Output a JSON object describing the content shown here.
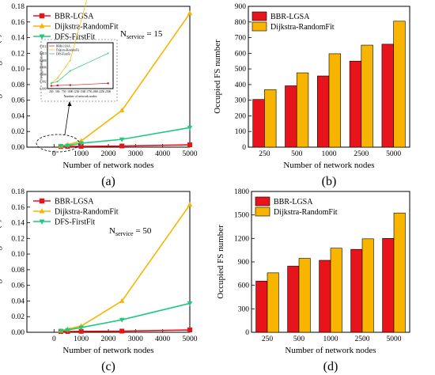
{
  "colors": {
    "red": "#e8141c",
    "yellow": "#f7b500",
    "green": "#1fc97c"
  },
  "chart_data": [
    {
      "id": "a",
      "type": "line",
      "panel_label": "(a)",
      "xlabel": "Number of network nodes",
      "ylabel": "Average running time(s)",
      "xlim": [
        -1000,
        5000
      ],
      "ylim": [
        0,
        0.18
      ],
      "xticks": [
        0,
        1000,
        2000,
        3000,
        4000,
        5000
      ],
      "yticks": [
        0.0,
        0.02,
        0.04,
        0.06,
        0.08,
        0.1,
        0.12,
        0.14,
        0.16,
        0.18
      ],
      "annotation_main": "N",
      "annotation_sub": "service",
      "annotation_tail": " = 15",
      "legend_position": "top-left",
      "x": [
        250,
        500,
        1000,
        2500,
        5000
      ],
      "series": [
        {
          "name": "BBR-LGSA",
          "marker": "square",
          "color": "red",
          "values": [
            0.0008,
            0.0009,
            0.001,
            0.0015,
            0.003
          ]
        },
        {
          "name": "Dijkstra-RandomFit",
          "marker": "triangle-up",
          "color": "yellow",
          "values": [
            0.0015,
            0.003,
            0.008,
            0.047,
            0.171
          ]
        },
        {
          "name": "DFS-FirstFit",
          "marker": "triangle-down",
          "color": "green",
          "values": [
            0.0015,
            0.002,
            0.005,
            0.01,
            0.025
          ]
        }
      ],
      "inset": {
        "xlabel": "Number of network nodes",
        "ylabel": "Average running time(s)",
        "xticks": [
          250,
          500,
          750,
          1000,
          1250,
          1500,
          1750,
          2000,
          2250,
          2500
        ],
        "yticks": [
          0,
          0.002,
          0.004,
          0.006,
          0.008,
          0.01,
          0.012
        ],
        "xlim": [
          100,
          2700
        ],
        "ylim": [
          0,
          0.013
        ],
        "series_names": [
          "BBR-LGSA",
          "Dijkstra-RandomFit",
          "DFS-FirstFit"
        ]
      }
    },
    {
      "id": "b",
      "type": "bar",
      "panel_label": "(b)",
      "xlabel": "Number of network nodes",
      "ylabel": "Occupied FS number",
      "ylim": [
        0,
        900
      ],
      "yticks": [
        0,
        100,
        200,
        300,
        400,
        500,
        600,
        700,
        800,
        900
      ],
      "legend_position": "top-left",
      "categories": [
        "250",
        "500",
        "1000",
        "2500",
        "5000"
      ],
      "series": [
        {
          "name": "BBR-LGSA",
          "color": "red",
          "values": [
            305,
            392,
            455,
            550,
            658
          ]
        },
        {
          "name": "Dijkstra-RandomFit",
          "color": "yellow",
          "values": [
            368,
            475,
            597,
            652,
            805
          ]
        }
      ]
    },
    {
      "id": "c",
      "type": "line",
      "panel_label": "(c)",
      "xlabel": "Number of network nodes",
      "ylabel": "Average running time(s)",
      "xlim": [
        -1000,
        5000
      ],
      "ylim": [
        0,
        0.18
      ],
      "xticks": [
        0,
        1000,
        2000,
        3000,
        4000,
        5000
      ],
      "yticks": [
        0.0,
        0.02,
        0.04,
        0.06,
        0.08,
        0.1,
        0.12,
        0.14,
        0.16,
        0.18
      ],
      "annotation_main": "N",
      "annotation_sub": "service",
      "annotation_tail": " = 50",
      "legend_position": "top-left",
      "x": [
        250,
        500,
        1000,
        2500,
        5000
      ],
      "series": [
        {
          "name": "BBR-LGSA",
          "marker": "square",
          "color": "red",
          "values": [
            0.001,
            0.001,
            0.0012,
            0.0015,
            0.003
          ]
        },
        {
          "name": "Dijkstra-RandomFit",
          "marker": "triangle-up",
          "color": "yellow",
          "values": [
            0.002,
            0.004,
            0.008,
            0.04,
            0.163
          ]
        },
        {
          "name": "DFS-FirstFit",
          "marker": "triangle-down",
          "color": "green",
          "values": [
            0.002,
            0.003,
            0.006,
            0.016,
            0.037
          ]
        }
      ]
    },
    {
      "id": "d",
      "type": "bar",
      "panel_label": "(d)",
      "xlabel": "Number of network nodes",
      "ylabel": "Occupied FS number",
      "ylim": [
        0,
        1800
      ],
      "yticks": [
        0,
        300,
        600,
        900,
        1200,
        1500,
        1800
      ],
      "legend_position": "top-left",
      "categories": [
        "250",
        "500",
        "1000",
        "2500",
        "5000"
      ],
      "series": [
        {
          "name": "BBR-LGSA",
          "color": "red",
          "values": [
            655,
            845,
            920,
            1060,
            1200
          ]
        },
        {
          "name": "Dijkstra-RandomFit",
          "color": "yellow",
          "values": [
            760,
            945,
            1075,
            1195,
            1525
          ]
        }
      ]
    }
  ]
}
